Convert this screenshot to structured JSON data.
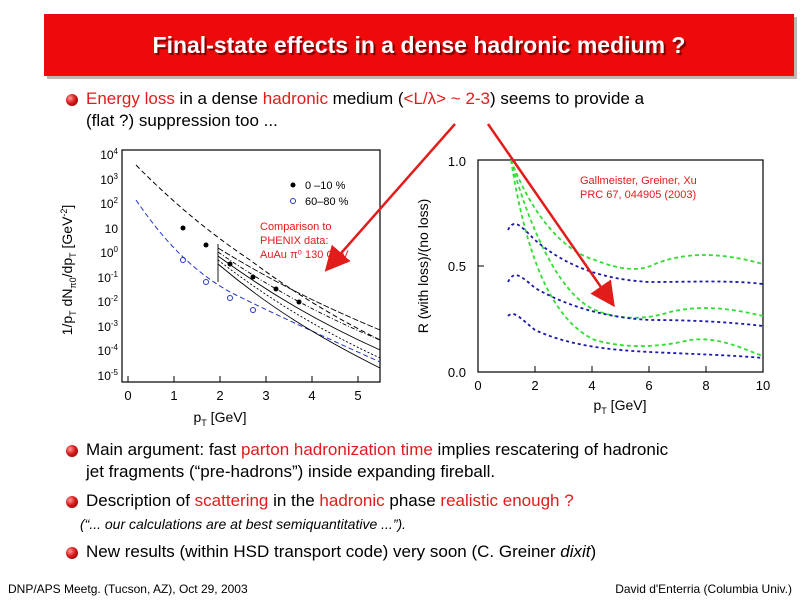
{
  "title": "Final-state effects in a dense hadronic medium ?",
  "bullet1": {
    "energy_loss": "Energy loss",
    "t1": " in a dense ",
    "hadronic": "hadronic",
    "t2": " medium (",
    "ratio": "<L/λ> ~ 2-3",
    "t3": ") seems to provide a",
    "line2": "(flat ?) suppression too ..."
  },
  "left_plot": {
    "y_label": "1/p_T dN_π0/dp_T [GeV^-2]",
    "x_label": "p_T [GeV]",
    "x_ticks": [
      "0",
      "1",
      "2",
      "3",
      "4",
      "5"
    ],
    "y_ticks": [
      "10^4",
      "10^3",
      "10^2",
      "10",
      "10^0",
      "10^-1",
      "10^-2",
      "10^-3",
      "10^-4",
      "10^-5"
    ],
    "legend": [
      "0 –10 %",
      "60–80 %"
    ],
    "annotation": [
      "Comparison to",
      "PHENIX data:",
      "AuAu π⁰ 130 GeV"
    ]
  },
  "right_plot": {
    "y_label": "R (with loss)/(no loss)",
    "x_label": "p_T [GeV]",
    "x_ticks": [
      "0",
      "2",
      "4",
      "6",
      "8",
      "10"
    ],
    "y_ticks": [
      "1.0",
      "0.5",
      "0.0"
    ],
    "citation": [
      "Gallmeister, Greiner, Xu",
      "PRC 67, 044905 (2003)"
    ]
  },
  "bullet2": {
    "t1": "Main argument: fast ",
    "red": "parton hadronization time",
    "t2": " implies rescatering of hadronic",
    "line2": "jet fragments (“pre-hadrons”) inside expanding fireball."
  },
  "bullet3": {
    "t1": "Description of ",
    "red1": "scattering",
    "t2": " in the ",
    "red2": "hadronic",
    "t3": " phase ",
    "red3": "realistic enough ?",
    "quote": "(“... our calculations are at best semiquantitative ...”)."
  },
  "bullet4": {
    "t1": "New results (within HSD transport code) very soon (C. Greiner ",
    "dixit": "dixit",
    "t2": ")"
  },
  "footer": {
    "left": "DNP/APS Meetg. (Tucson, AZ), Oct 29, 2003",
    "right": "David d'Enterria (Columbia Univ.)"
  },
  "colors": {
    "accent": "#e21b1b",
    "title_bg": "#ee0a0a"
  }
}
